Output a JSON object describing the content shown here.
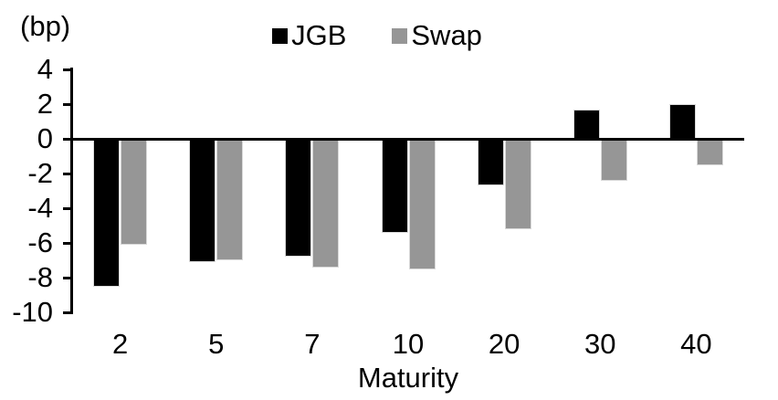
{
  "chart_data": {
    "type": "bar",
    "title": "",
    "unit_label": "(bp)",
    "xlabel": "Maturity",
    "ylabel": "",
    "categories": [
      "2",
      "5",
      "7",
      "10",
      "20",
      "30",
      "40"
    ],
    "series": [
      {
        "name": "JGB",
        "color": "#000000",
        "values": [
          -8.5,
          -7.1,
          -6.8,
          -5.4,
          -2.7,
          1.7,
          2.0
        ]
      },
      {
        "name": "Swap",
        "color": "#969696",
        "values": [
          -6.1,
          -7.0,
          -7.4,
          -7.5,
          -5.2,
          -2.4,
          -1.5
        ]
      }
    ],
    "ytick_labels": [
      "4",
      "2",
      "0",
      "-2",
      "-4",
      "-6",
      "-8",
      "-10"
    ],
    "ytick_values": [
      4,
      2,
      0,
      -2,
      -4,
      -6,
      -8,
      -10
    ],
    "ylim": [
      -10,
      4
    ],
    "legend_position": "top-center",
    "grid": false,
    "bar_border_color": "#d9d9d9",
    "axis_color": "#000000"
  }
}
